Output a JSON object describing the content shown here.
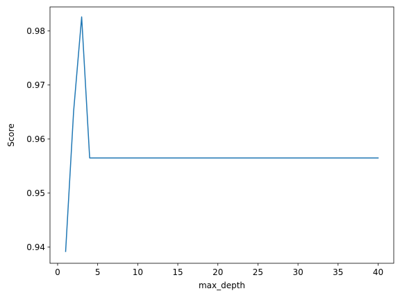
{
  "chart_data": {
    "type": "line",
    "title": "",
    "xlabel": "max_depth",
    "ylabel": "Score",
    "xlim": [
      -0.95,
      41.95
    ],
    "ylim": [
      0.93701,
      0.98445
    ],
    "xticks": [
      0,
      5,
      10,
      15,
      20,
      25,
      30,
      35,
      40
    ],
    "xtick_labels": [
      "0",
      "5",
      "10",
      "15",
      "20",
      "25",
      "30",
      "35",
      "40"
    ],
    "yticks": [
      0.94,
      0.95,
      0.96,
      0.97,
      0.98
    ],
    "ytick_labels": [
      "0.94",
      "0.95",
      "0.96",
      "0.97",
      "0.98"
    ],
    "grid": false,
    "legend": "none",
    "series": [
      {
        "color": "#1f77b4",
        "x": [
          1,
          2,
          3,
          4,
          5,
          6,
          7,
          8,
          9,
          10,
          11,
          12,
          13,
          14,
          15,
          16,
          17,
          18,
          19,
          20,
          21,
          22,
          23,
          24,
          25,
          26,
          27,
          28,
          29,
          30,
          31,
          32,
          33,
          34,
          35,
          36,
          37,
          38,
          39,
          40
        ],
        "y": [
          0.9392,
          0.9652,
          0.9826,
          0.9565,
          0.9565,
          0.9565,
          0.9565,
          0.9565,
          0.9565,
          0.9565,
          0.9565,
          0.9565,
          0.9565,
          0.9565,
          0.9565,
          0.9565,
          0.9565,
          0.9565,
          0.9565,
          0.9565,
          0.9565,
          0.9565,
          0.9565,
          0.9565,
          0.9565,
          0.9565,
          0.9565,
          0.9565,
          0.9565,
          0.9565,
          0.9565,
          0.9565,
          0.9565,
          0.9565,
          0.9565,
          0.9565,
          0.9565,
          0.9565,
          0.9565,
          0.9565
        ]
      }
    ]
  }
}
